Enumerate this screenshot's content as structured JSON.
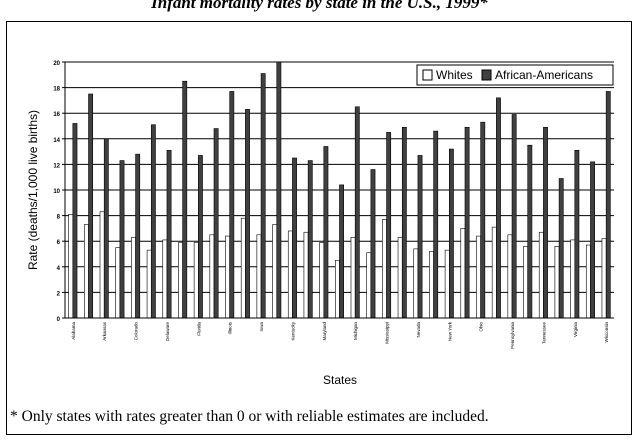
{
  "header": {
    "title": "Infant mortality rates by state in the U.S., 1999*"
  },
  "footnote": {
    "text": "* Only states with rates greater than 0 or with reliable estimates are included."
  },
  "colors": {
    "whites": "#ffffff",
    "african_americans": "#404040"
  },
  "chart_data": {
    "type": "bar",
    "title": "",
    "xlabel": "States",
    "ylabel": "Rate (deaths/1,000 live births)",
    "ylim": [
      0,
      20
    ],
    "yticks": [
      0,
      2,
      4,
      6,
      8,
      10,
      12,
      14,
      16,
      18,
      20
    ],
    "grid": true,
    "legend_position": "top-right",
    "categories": [
      "Alabama",
      "",
      "Arkansas",
      "",
      "Colorado",
      "",
      "Delaware",
      "",
      "Florida",
      "",
      "Illinois",
      "",
      "Iowa",
      "",
      "Kentucky",
      "",
      "Maryland",
      "",
      "Michigan",
      "",
      "Mississippi",
      "",
      "Nevada",
      "",
      "New York",
      "",
      "Ohio",
      "",
      "Pennsylvania",
      "",
      "Tennessee",
      "",
      "Virginia",
      "",
      "Wisconsin"
    ],
    "series": [
      {
        "name": "Whites",
        "values": [
          8.1,
          7.3,
          8.3,
          5.5,
          6.3,
          5.3,
          6.1,
          5.9,
          5.9,
          6.5,
          6.4,
          7.8,
          6.5,
          7.3,
          6.8,
          6.7,
          5.9,
          4.5,
          6.3,
          5.1,
          7.7,
          6.3,
          5.4,
          5.2,
          5.3,
          7.0,
          6.4,
          7.1,
          6.5,
          5.6,
          6.7,
          5.6,
          6.1,
          5.7,
          6.2
        ]
      },
      {
        "name": "African-Americans",
        "values": [
          15.2,
          17.5,
          14.0,
          12.3,
          12.8,
          15.1,
          13.1,
          18.5,
          12.7,
          14.8,
          17.7,
          16.3,
          19.1,
          20.0,
          12.5,
          12.3,
          13.4,
          10.4,
          16.5,
          11.6,
          14.5,
          14.9,
          12.7,
          14.6,
          13.2,
          14.9,
          15.3,
          17.2,
          15.9,
          13.5,
          14.9,
          10.9,
          13.1,
          12.2,
          17.7
        ]
      }
    ]
  }
}
